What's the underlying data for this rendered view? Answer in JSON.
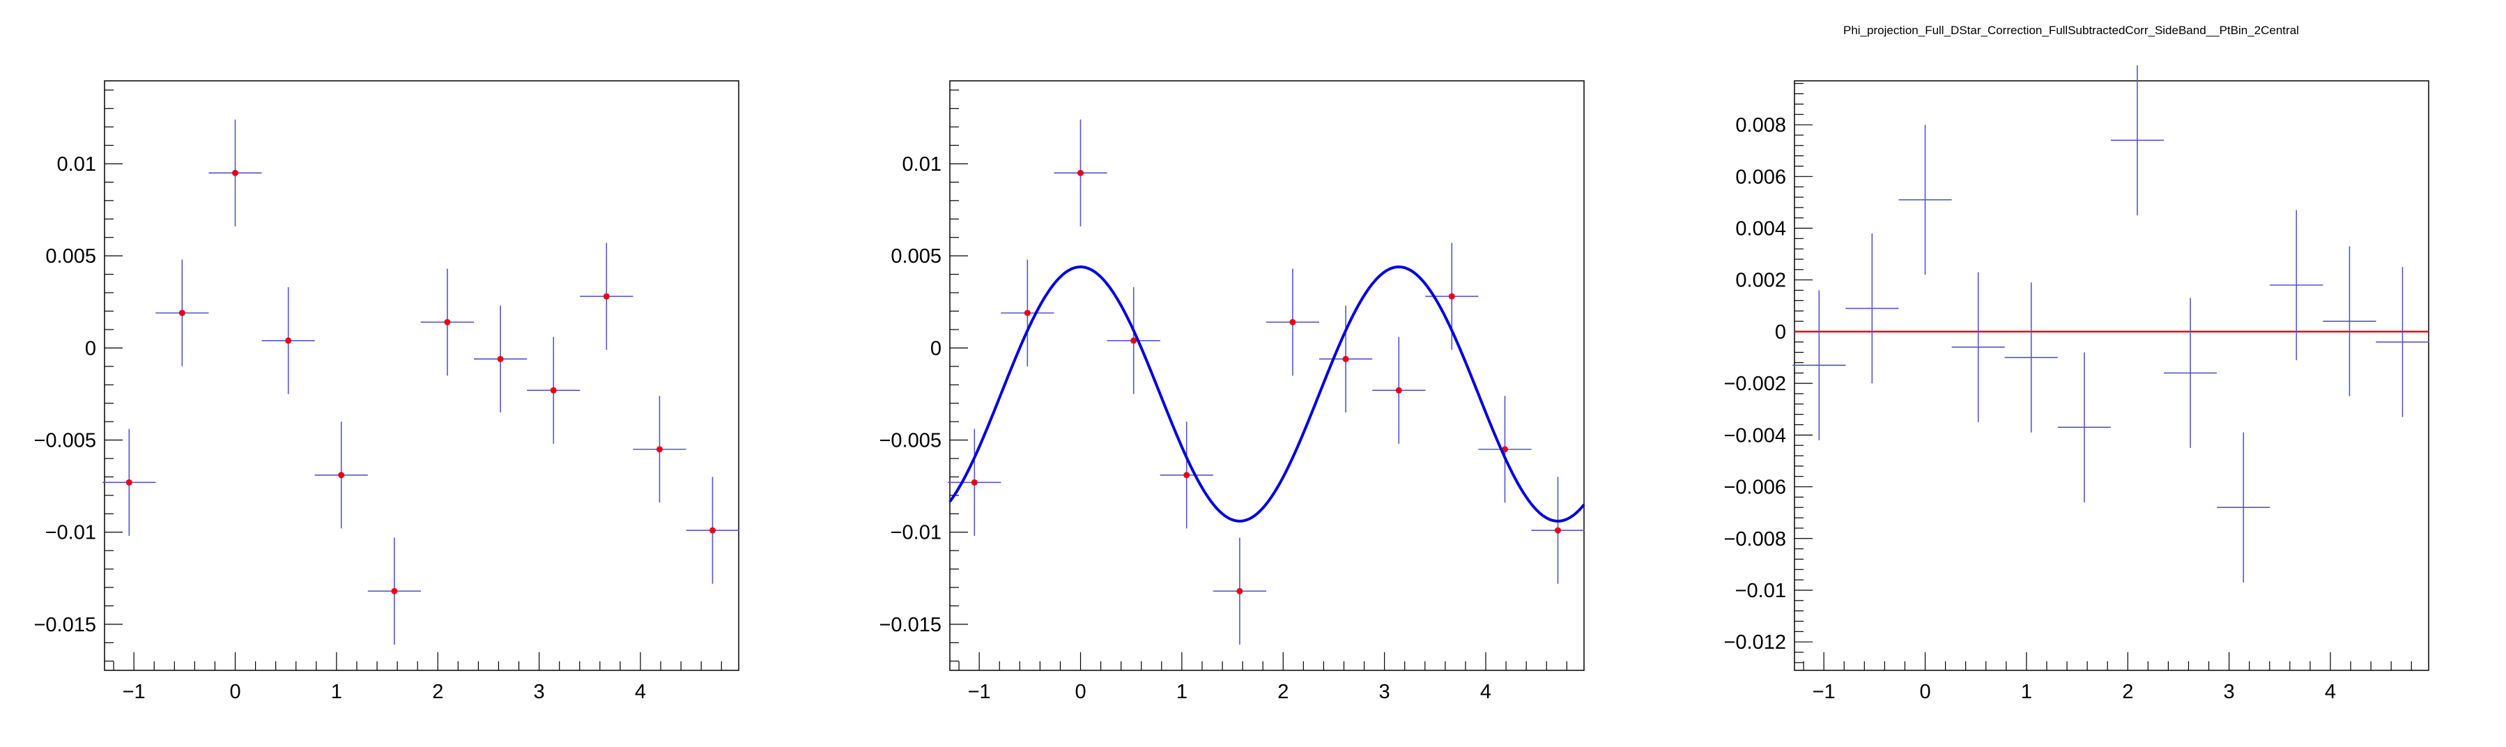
{
  "title": "Phi_projection_Full_DStar_Correction_FullSubtractedCorr_SideBand__PtBin_2Central",
  "colors": {
    "frame": "#000000",
    "marker": "#e8001a",
    "error_bar": "#5555cc",
    "fit_curve": "#0000dd",
    "zero_line": "#e8001a"
  },
  "chart_data": [
    {
      "type": "scatter",
      "xlim": [
        -1.29,
        4.97
      ],
      "ylim": [
        -0.0175,
        0.0145
      ],
      "xticks": [
        -1,
        0,
        1,
        2,
        3,
        4
      ],
      "xtick_labels": [
        "−1",
        "0",
        "1",
        "2",
        "3",
        "4"
      ],
      "yticks": [
        0.01,
        0.005,
        0,
        -0.005,
        -0.01,
        -0.015
      ],
      "ytick_labels": [
        "0.01",
        "0.005",
        "0",
        "−0.005",
        "−0.01",
        "−0.015"
      ],
      "x": [
        -1.047,
        -0.524,
        0.0,
        0.524,
        1.047,
        1.571,
        2.094,
        2.618,
        3.142,
        3.665,
        4.189,
        4.712
      ],
      "y": [
        -0.0073,
        0.0019,
        0.0095,
        0.0004,
        -0.0069,
        -0.0132,
        0.0014,
        -0.0006,
        -0.0023,
        0.0028,
        -0.0055,
        -0.0099
      ],
      "xerr": 0.262,
      "yerr": 0.0029
    },
    {
      "type": "scatter",
      "xlim": [
        -1.29,
        4.97
      ],
      "ylim": [
        -0.0175,
        0.0145
      ],
      "xticks": [
        -1,
        0,
        1,
        2,
        3,
        4
      ],
      "xtick_labels": [
        "−1",
        "0",
        "1",
        "2",
        "3",
        "4"
      ],
      "yticks": [
        0.01,
        0.005,
        0,
        -0.005,
        -0.01,
        -0.015
      ],
      "ytick_labels": [
        "0.01",
        "0.005",
        "0",
        "−0.005",
        "−0.01",
        "−0.015"
      ],
      "x": [
        -1.047,
        -0.524,
        0.0,
        0.524,
        1.047,
        1.571,
        2.094,
        2.618,
        3.142,
        3.665,
        4.189,
        4.712
      ],
      "y": [
        -0.0073,
        0.0019,
        0.0095,
        0.0004,
        -0.0069,
        -0.0132,
        0.0014,
        -0.0006,
        -0.0023,
        0.0028,
        -0.0055,
        -0.0099
      ],
      "xerr": 0.262,
      "yerr": 0.0029,
      "fit": {
        "type": "cosine",
        "offset": -0.0025,
        "amplitude": 0.0069,
        "frequency": 2,
        "x_range": [
          -1.29,
          4.97
        ]
      }
    },
    {
      "type": "scatter",
      "xlim": [
        -1.29,
        4.97
      ],
      "ylim": [
        -0.0131,
        0.0097
      ],
      "xticks": [
        -1,
        0,
        1,
        2,
        3,
        4
      ],
      "xtick_labels": [
        "−1",
        "0",
        "1",
        "2",
        "3",
        "4"
      ],
      "yticks": [
        0.008,
        0.006,
        0.004,
        0.002,
        0,
        -0.002,
        -0.004,
        -0.006,
        -0.008,
        -0.01,
        -0.012
      ],
      "ytick_labels": [
        "0.008",
        "0.006",
        "0.004",
        "0.002",
        "0",
        "−0.002",
        "−0.004",
        "−0.006",
        "−0.008",
        "−0.01",
        "−0.012"
      ],
      "x": [
        -1.047,
        -0.524,
        0.0,
        0.524,
        1.047,
        1.571,
        2.094,
        2.618,
        3.142,
        3.665,
        4.189,
        4.712
      ],
      "y": [
        -0.0013,
        0.0009,
        0.0051,
        -0.0006,
        -0.001,
        -0.0037,
        0.0074,
        -0.0016,
        -0.0068,
        0.0018,
        0.0004,
        -0.0004
      ],
      "xerr": 0.262,
      "yerr": 0.0029,
      "reference_line": 0
    }
  ]
}
